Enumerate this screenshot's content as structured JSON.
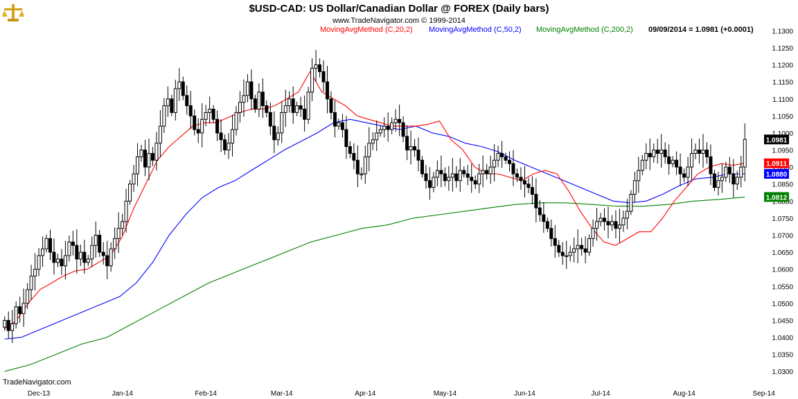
{
  "header": {
    "title": "$USD-CAD:  US Dollar/Canadian Dollar @ FOREX  (Daily bars)",
    "copyright": "www.TradeNavigator.com © 1999-2014",
    "status": "09/09/2014 = 1.0981 (+0.0001)"
  },
  "legend": [
    {
      "label": "MovingAvgMethod (C,20,2)",
      "color": "#ff0000"
    },
    {
      "label": "MovingAvgMethod (C,50,2)",
      "color": "#0000ff"
    },
    {
      "label": "MovingAvgMethod (C,200,2)",
      "color": "#008000"
    }
  ],
  "footer": {
    "brand": "TradeNavigator.com"
  },
  "logo": {
    "icon": "gold-balance-scale-icon"
  },
  "chart_data": {
    "type": "candlestick",
    "title": "$USD-CAD:  US Dollar/Canadian Dollar @ FOREX  (Daily bars)",
    "y_ticks": [
      "1.1300",
      "1.1250",
      "1.1200",
      "1.1150",
      "1.1100",
      "1.1050",
      "1.1000",
      "1.0950",
      "1.0900",
      "1.0850",
      "1.0800",
      "1.0750",
      "1.0700",
      "1.0650",
      "1.0600",
      "1.0550",
      "1.0500",
      "1.0450",
      "1.0400",
      "1.0350",
      "1.0300"
    ],
    "ylim": [
      1.027,
      1.1315
    ],
    "x_ticks": [
      {
        "label": "Dec-13",
        "i": 9
      },
      {
        "label": "Jan-14",
        "i": 31
      },
      {
        "label": "Feb-14",
        "i": 53
      },
      {
        "label": "Mar-14",
        "i": 73
      },
      {
        "label": "Apr-14",
        "i": 95
      },
      {
        "label": "May-14",
        "i": 116
      },
      {
        "label": "Jun-14",
        "i": 137
      },
      {
        "label": "Jul-14",
        "i": 157
      },
      {
        "label": "Aug-14",
        "i": 179
      },
      {
        "label": "Sep-14",
        "i": 200
      }
    ],
    "last_values": [
      {
        "label": "1.0981",
        "value": 1.0981,
        "color": "#000000"
      },
      {
        "label": "1.0911",
        "value": 1.0911,
        "color": "#ff0000"
      },
      {
        "label": "1.0880",
        "value": 1.088,
        "color": "#0000ff"
      },
      {
        "label": "1.0812",
        "value": 1.0812,
        "color": "#008000"
      }
    ],
    "close": [
      1.045,
      1.042,
      1.044,
      1.049,
      1.047,
      1.05,
      1.054,
      1.058,
      1.06,
      1.064,
      1.066,
      1.069,
      1.065,
      1.062,
      1.063,
      1.061,
      1.064,
      1.068,
      1.067,
      1.063,
      1.065,
      1.062,
      1.063,
      1.067,
      1.07,
      1.065,
      1.064,
      1.061,
      1.066,
      1.069,
      1.072,
      1.074,
      1.08,
      1.085,
      1.088,
      1.093,
      1.095,
      1.09,
      1.094,
      1.092,
      1.097,
      1.102,
      1.108,
      1.11,
      1.106,
      1.113,
      1.115,
      1.111,
      1.108,
      1.105,
      1.101,
      1.1,
      1.104,
      1.106,
      1.107,
      1.104,
      1.1,
      1.098,
      1.095,
      1.097,
      1.101,
      1.106,
      1.109,
      1.111,
      1.115,
      1.11,
      1.107,
      1.112,
      1.108,
      1.106,
      1.102,
      1.098,
      1.1,
      1.106,
      1.108,
      1.11,
      1.106,
      1.108,
      1.107,
      1.104,
      1.112,
      1.119,
      1.12,
      1.118,
      1.115,
      1.11,
      1.106,
      1.102,
      1.103,
      1.101,
      1.096,
      1.094,
      1.092,
      1.088,
      1.088,
      1.093,
      1.097,
      1.098,
      1.1,
      1.101,
      1.102,
      1.101,
      1.103,
      1.104,
      1.103,
      1.099,
      1.095,
      1.096,
      1.095,
      1.092,
      1.088,
      1.086,
      1.084,
      1.087,
      1.089,
      1.088,
      1.086,
      1.087,
      1.088,
      1.086,
      1.089,
      1.088,
      1.087,
      1.086,
      1.085,
      1.088,
      1.089,
      1.088,
      1.09,
      1.092,
      1.094,
      1.093,
      1.092,
      1.091,
      1.088,
      1.087,
      1.086,
      1.085,
      1.084,
      1.082,
      1.078,
      1.076,
      1.074,
      1.072,
      1.069,
      1.067,
      1.065,
      1.064,
      1.064,
      1.065,
      1.066,
      1.067,
      1.066,
      1.065,
      1.069,
      1.072,
      1.074,
      1.075,
      1.074,
      1.073,
      1.074,
      1.072,
      1.073,
      1.075,
      1.077,
      1.082,
      1.086,
      1.089,
      1.092,
      1.094,
      1.093,
      1.095,
      1.094,
      1.095,
      1.093,
      1.091,
      1.092,
      1.09,
      1.088,
      1.087,
      1.09,
      1.094,
      1.095,
      1.094,
      1.095,
      1.093,
      1.088,
      1.084,
      1.086,
      1.087,
      1.09,
      1.088,
      1.085,
      1.087,
      1.09,
      1.0981
    ],
    "ma20": [
      1.0425,
      1.045,
      1.05,
      1.054,
      1.056,
      1.058,
      1.0595,
      1.06,
      1.062,
      1.064,
      1.0695,
      1.078,
      1.085,
      1.092,
      1.096,
      1.099,
      1.102,
      1.103,
      1.103,
      1.1045,
      1.106,
      1.107,
      1.107,
      1.108,
      1.11,
      1.112,
      1.118,
      1.112,
      1.11,
      1.108,
      1.105,
      1.104,
      1.103,
      1.102,
      1.102,
      1.102,
      1.1025,
      1.1035,
      1.098,
      1.095,
      1.09,
      1.088,
      1.088,
      1.087,
      1.086,
      1.088,
      1.089,
      1.088,
      1.083,
      1.077,
      1.072,
      1.068,
      1.067,
      1.069,
      1.071,
      1.071,
      1.075,
      1.08,
      1.084,
      1.088,
      1.09,
      1.091,
      1.0905,
      1.0911
    ],
    "ma50": [
      1.0395,
      1.04,
      1.042,
      1.044,
      1.046,
      1.048,
      1.05,
      1.052,
      1.056,
      1.062,
      1.07,
      1.076,
      1.081,
      1.084,
      1.086,
      1.089,
      1.092,
      1.095,
      1.0975,
      1.1,
      1.103,
      1.104,
      1.103,
      1.102,
      1.101,
      1.102,
      1.1,
      1.099,
      1.097,
      1.096,
      1.0945,
      1.092,
      1.09,
      1.088,
      1.086,
      1.084,
      1.082,
      1.08,
      1.0795,
      1.08,
      1.082,
      1.0845,
      1.0865,
      1.087,
      1.088,
      1.088
    ],
    "ma200": [
      1.03,
      1.032,
      1.035,
      1.038,
      1.04,
      1.044,
      1.048,
      1.052,
      1.056,
      1.059,
      1.062,
      1.065,
      1.068,
      1.07,
      1.072,
      1.073,
      1.075,
      1.076,
      1.077,
      1.078,
      1.079,
      1.0795,
      1.0795,
      1.079,
      1.0785,
      1.0785,
      1.079,
      1.08,
      1.0805,
      1.0812
    ]
  }
}
